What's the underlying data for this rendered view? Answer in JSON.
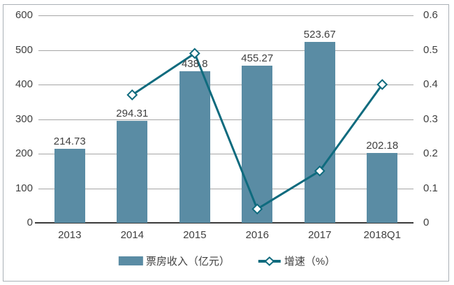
{
  "chart_data": {
    "type": "combo",
    "categories": [
      "2013",
      "2014",
      "2015",
      "2016",
      "2017",
      "2018Q1"
    ],
    "series": [
      {
        "name": "票房收入（亿元）",
        "type": "bar",
        "axis": "left",
        "values": [
          214.73,
          294.31,
          438.8,
          455.27,
          523.67,
          202.18
        ],
        "labels": [
          "214.73",
          "294.31",
          "438.8",
          "455.27",
          "523.67",
          "202.18"
        ]
      },
      {
        "name": "增速（%）",
        "type": "line",
        "axis": "right",
        "marker": "diamond",
        "values": [
          null,
          0.37,
          0.49,
          0.04,
          0.15,
          0.4
        ]
      }
    ],
    "left_axis": {
      "min": 0,
      "max": 600,
      "step": 100,
      "ticks": [
        "0",
        "100",
        "200",
        "300",
        "400",
        "500",
        "600"
      ]
    },
    "right_axis": {
      "min": 0,
      "max": 0.6,
      "step": 0.1,
      "ticks": [
        "0",
        "0.1",
        "0.2",
        "0.3",
        "0.4",
        "0.5",
        "0.6"
      ]
    },
    "grid": true,
    "legend_position": "bottom",
    "title": ""
  },
  "legend": {
    "bar_label": "票房收入（亿元）",
    "line_label": "增速（%）"
  },
  "colors": {
    "bar": "#5A8CA4",
    "line": "#0F6B7E",
    "marker_fill": "#FFFFFF",
    "grid": "#A6A6A6",
    "axis": "#3A3A3A",
    "text": "#404040",
    "frame": "#AAB0B6"
  }
}
